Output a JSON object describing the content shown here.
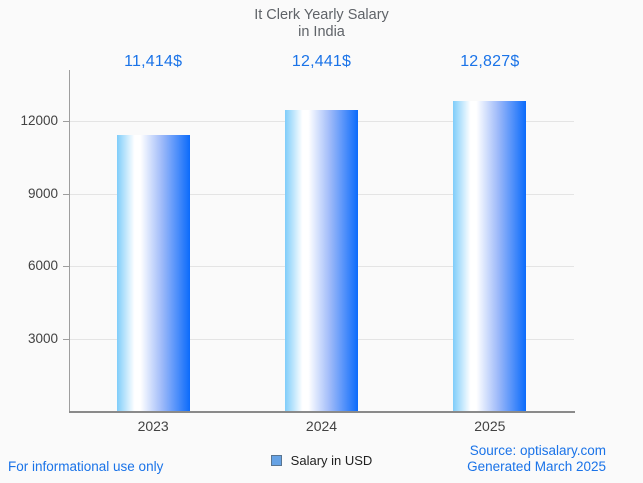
{
  "background_color": "#fafafa",
  "chart_data": {
    "type": "bar",
    "title_line1": "It Clerk Yearly Salary",
    "title_line2": "in India",
    "title_color": "#5f6368",
    "categories": [
      "2023",
      "2024",
      "2025"
    ],
    "values": [
      11414,
      12441,
      12827
    ],
    "value_labels": [
      "11,414$",
      "12,441$",
      "12,827$"
    ],
    "value_label_color": "#1a73e8",
    "series": [
      {
        "name": "Salary in USD",
        "values": [
          11414,
          12441,
          12827
        ]
      }
    ],
    "xlabel": "",
    "ylabel": "",
    "yticks": [
      3000,
      6000,
      9000,
      12000
    ],
    "ylim": [
      0,
      14100
    ],
    "grid": true,
    "legend_position": "bottom",
    "bar_gradient": [
      "#7fcdfa",
      "#ffffff",
      "#0b6bfb"
    ],
    "gridline_color": "#e4e4e4",
    "axis_color": "#8a8a8a"
  },
  "legend": {
    "label": "Salary in USD",
    "swatch_fill": "#66a2e4",
    "swatch_border": "#5a7590"
  },
  "footer": {
    "left_text": "For informational use only",
    "source_text": "Source: optisalary.com",
    "generated_text": "Generated March 2025",
    "text_color": "#1a73e8"
  }
}
